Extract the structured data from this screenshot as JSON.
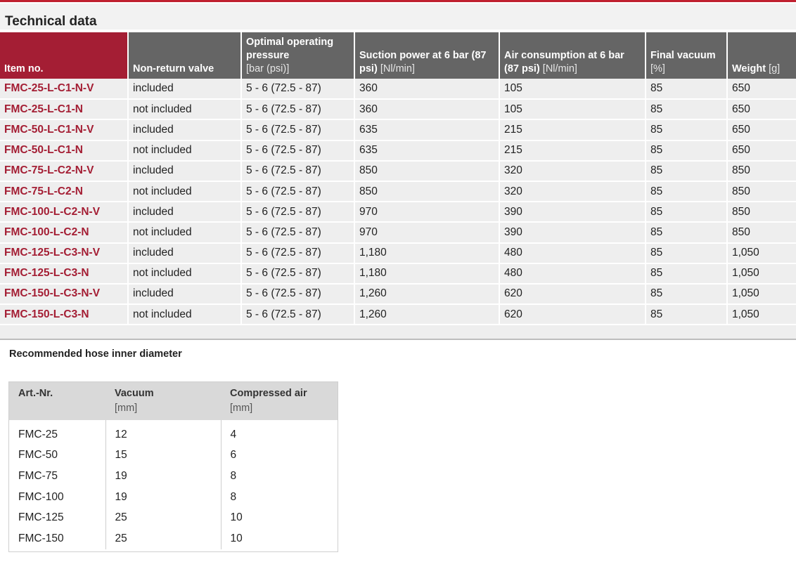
{
  "technical_data": {
    "title": "Technical data",
    "headers": [
      {
        "title": "Item no.",
        "unit": ""
      },
      {
        "title": "Non-return valve",
        "unit": ""
      },
      {
        "title": "Optimal operating pressure",
        "unit": "[bar (psi)]"
      },
      {
        "title": "Suction power at 6 bar (87 psi)",
        "unit": "[Nl/min]"
      },
      {
        "title": "Air consumption at 6 bar (87 psi)",
        "unit": "[Nl/min]"
      },
      {
        "title": "Final vacuum",
        "unit": "[%]"
      },
      {
        "title": "Weight",
        "unit": "[g]"
      }
    ],
    "rows": [
      [
        "FMC-25-L-C1-N-V",
        "included",
        "5 - 6 (72.5 - 87)",
        "360",
        "105",
        "85",
        "650"
      ],
      [
        "FMC-25-L-C1-N",
        "not included",
        "5 - 6 (72.5 - 87)",
        "360",
        "105",
        "85",
        "650"
      ],
      [
        "FMC-50-L-C1-N-V",
        "included",
        "5 - 6 (72.5 - 87)",
        "635",
        "215",
        "85",
        "650"
      ],
      [
        "FMC-50-L-C1-N",
        "not included",
        "5 - 6 (72.5 - 87)",
        "635",
        "215",
        "85",
        "650"
      ],
      [
        "FMC-75-L-C2-N-V",
        "included",
        "5 - 6 (72.5 - 87)",
        "850",
        "320",
        "85",
        "850"
      ],
      [
        "FMC-75-L-C2-N",
        "not included",
        "5 - 6 (72.5 - 87)",
        "850",
        "320",
        "85",
        "850"
      ],
      [
        "FMC-100-L-C2-N-V",
        "included",
        "5 - 6 (72.5 - 87)",
        "970",
        "390",
        "85",
        "850"
      ],
      [
        "FMC-100-L-C2-N",
        "not included",
        "5 - 6 (72.5 - 87)",
        "970",
        "390",
        "85",
        "850"
      ],
      [
        "FMC-125-L-C3-N-V",
        "included",
        "5 - 6 (72.5 - 87)",
        "1,180",
        "480",
        "85",
        "1,050"
      ],
      [
        "FMC-125-L-C3-N",
        "not included",
        "5 - 6 (72.5 - 87)",
        "1,180",
        "480",
        "85",
        "1,050"
      ],
      [
        "FMC-150-L-C3-N-V",
        "included",
        "5 - 6 (72.5 - 87)",
        "1,260",
        "620",
        "85",
        "1,050"
      ],
      [
        "FMC-150-L-C3-N",
        "not included",
        "5 - 6 (72.5 - 87)",
        "1,260",
        "620",
        "85",
        "1,050"
      ]
    ]
  },
  "hose": {
    "title": "Recommended hose inner diameter",
    "headers": [
      {
        "title": "Art.-Nr.",
        "unit": ""
      },
      {
        "title": "Vacuum",
        "unit": "[mm]"
      },
      {
        "title": "Compressed air",
        "unit": "[mm]"
      }
    ],
    "rows": [
      [
        "FMC-25",
        "12",
        "4"
      ],
      [
        "FMC-50",
        "15",
        "6"
      ],
      [
        "FMC-75",
        "19",
        "8"
      ],
      [
        "FMC-100",
        "19",
        "8"
      ],
      [
        "FMC-125",
        "25",
        "10"
      ],
      [
        "FMC-150",
        "25",
        "10"
      ]
    ]
  },
  "colors": {
    "accent": "#a41e34",
    "header_gray": "#656565",
    "row_bg": "#eeeeee"
  }
}
